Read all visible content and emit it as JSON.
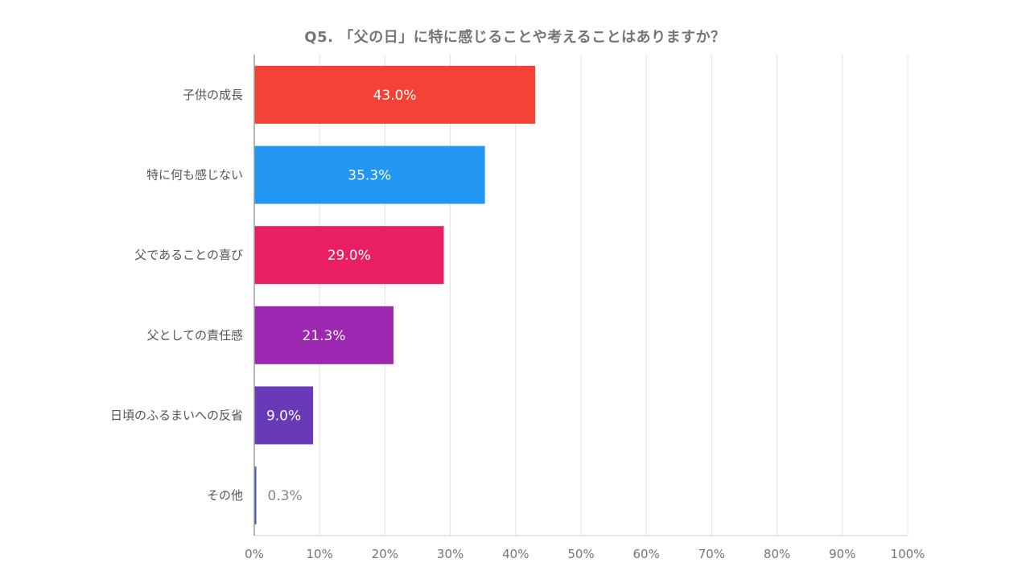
{
  "chart_data": {
    "type": "bar",
    "orientation": "horizontal",
    "title": "Q5. 「父の日」に特に感じることや考えることはありますか？",
    "categories": [
      "子供の成長",
      "特に何も感じない",
      "父であることの喜び",
      "父としての責任感",
      "日頃のふるまいへの反省",
      "その他"
    ],
    "values": [
      43.0,
      35.3,
      29.0,
      21.3,
      9.0,
      0.3
    ],
    "data_labels": [
      "43.0%",
      "35.3%",
      "29.0%",
      "21.3%",
      "9.0%",
      "0.3%"
    ],
    "colors": [
      "#f44336",
      "#2196f3",
      "#e91e63",
      "#9c27b0",
      "#673ab7",
      "#3f51b5"
    ],
    "xlim": [
      0,
      100
    ],
    "xticks": [
      0,
      10,
      20,
      30,
      40,
      50,
      60,
      70,
      80,
      90,
      100
    ],
    "xtick_labels": [
      "0%",
      "10%",
      "20%",
      "30%",
      "40%",
      "50%",
      "60%",
      "70%",
      "80%",
      "90%",
      "100%"
    ],
    "grid": true,
    "legend": "none",
    "xlabel": "",
    "ylabel": ""
  }
}
